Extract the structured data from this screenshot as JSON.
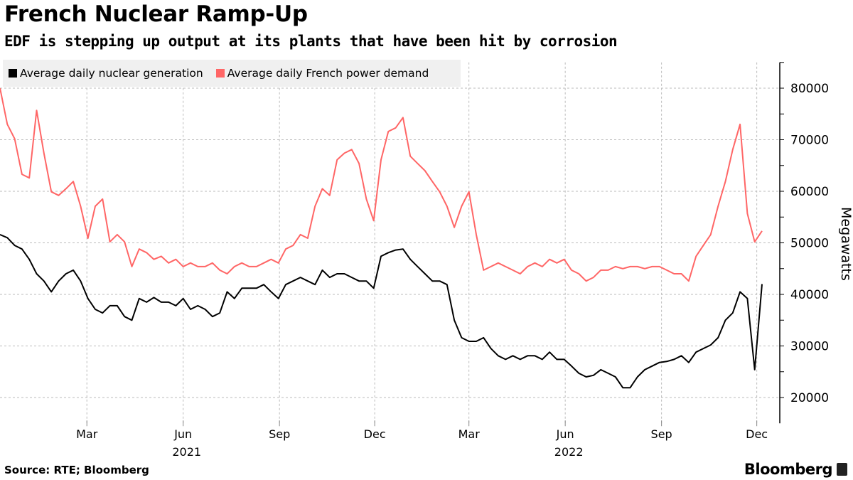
{
  "title": "French Nuclear Ramp-Up",
  "subtitle": "EDF is stepping up output at its plants that have been hit by corrosion",
  "source": "Source: RTE; Bloomberg",
  "logo": "Bloomberg",
  "chart_data": {
    "type": "line",
    "title": "French Nuclear Ramp-Up",
    "ylabel": "Megawatts",
    "ylim": [
      15000,
      85000
    ],
    "y_ticks": [
      20000,
      30000,
      40000,
      50000,
      60000,
      70000,
      80000
    ],
    "y_tick_labels": [
      "20000",
      "30000",
      "40000",
      "50000",
      "60000",
      "70000",
      "80000"
    ],
    "y_axis_side": "right",
    "x_range": [
      "2020-12-08",
      "2022-12-06"
    ],
    "x_ticks": [
      {
        "date": "2021-03-01",
        "label": "Mar"
      },
      {
        "date": "2021-06-01",
        "label": "Jun"
      },
      {
        "date": "2021-09-01",
        "label": "Sep"
      },
      {
        "date": "2021-12-01",
        "label": "Dec"
      },
      {
        "date": "2022-03-01",
        "label": "Mar"
      },
      {
        "date": "2022-06-01",
        "label": "Jun"
      },
      {
        "date": "2022-09-01",
        "label": "Sep"
      },
      {
        "date": "2022-12-01",
        "label": "Dec"
      }
    ],
    "x_year_labels": [
      {
        "date": "2021-06-01",
        "label": "2021"
      },
      {
        "date": "2022-06-01",
        "label": "2022"
      }
    ],
    "grid": true,
    "legend_position": "top-left",
    "x": [
      "2020-12-08",
      "2020-12-15",
      "2020-12-22",
      "2020-12-29",
      "2021-01-05",
      "2021-01-12",
      "2021-01-19",
      "2021-01-26",
      "2021-02-02",
      "2021-02-09",
      "2021-02-16",
      "2021-02-23",
      "2021-03-02",
      "2021-03-09",
      "2021-03-16",
      "2021-03-23",
      "2021-03-30",
      "2021-04-06",
      "2021-04-13",
      "2021-04-20",
      "2021-04-27",
      "2021-05-04",
      "2021-05-11",
      "2021-05-18",
      "2021-05-25",
      "2021-06-01",
      "2021-06-08",
      "2021-06-15",
      "2021-06-22",
      "2021-06-29",
      "2021-07-06",
      "2021-07-13",
      "2021-07-20",
      "2021-07-27",
      "2021-08-03",
      "2021-08-10",
      "2021-08-17",
      "2021-08-24",
      "2021-08-31",
      "2021-09-07",
      "2021-09-14",
      "2021-09-21",
      "2021-09-28",
      "2021-10-05",
      "2021-10-12",
      "2021-10-19",
      "2021-10-26",
      "2021-11-02",
      "2021-11-09",
      "2021-11-16",
      "2021-11-23",
      "2021-11-30",
      "2021-12-07",
      "2021-12-14",
      "2021-12-21",
      "2021-12-28",
      "2022-01-04",
      "2022-01-11",
      "2022-01-18",
      "2022-01-25",
      "2022-02-01",
      "2022-02-08",
      "2022-02-15",
      "2022-02-22",
      "2022-03-01",
      "2022-03-08",
      "2022-03-15",
      "2022-03-22",
      "2022-03-29",
      "2022-04-05",
      "2022-04-12",
      "2022-04-19",
      "2022-04-26",
      "2022-05-03",
      "2022-05-10",
      "2022-05-17",
      "2022-05-24",
      "2022-05-31",
      "2022-06-07",
      "2022-06-14",
      "2022-06-21",
      "2022-06-28",
      "2022-07-05",
      "2022-07-12",
      "2022-07-19",
      "2022-07-26",
      "2022-08-02",
      "2022-08-09",
      "2022-08-16",
      "2022-08-23",
      "2022-08-30",
      "2022-09-06",
      "2022-09-13",
      "2022-09-20",
      "2022-09-27",
      "2022-10-04",
      "2022-10-11",
      "2022-10-18",
      "2022-10-25",
      "2022-11-01",
      "2022-11-08",
      "2022-11-15",
      "2022-11-22",
      "2022-11-29",
      "2022-12-06"
    ],
    "series": [
      {
        "name": "Average daily nuclear generation",
        "color": "#000000",
        "values": [
          51600,
          51000,
          49500,
          48800,
          46800,
          44000,
          42600,
          40500,
          42600,
          44000,
          44700,
          42600,
          39200,
          37100,
          36400,
          37800,
          37800,
          35700,
          35000,
          39200,
          38500,
          39400,
          38500,
          38500,
          37800,
          39200,
          37100,
          37800,
          37100,
          35700,
          36400,
          40500,
          39200,
          41200,
          41200,
          41200,
          41900,
          40500,
          39200,
          41900,
          42600,
          43300,
          42600,
          41900,
          44700,
          43300,
          44000,
          44000,
          43300,
          42600,
          42600,
          41200,
          47400,
          48100,
          48600,
          48800,
          46800,
          45400,
          44000,
          42600,
          42600,
          41900,
          35000,
          31600,
          30900,
          30900,
          31600,
          29500,
          28100,
          27400,
          28100,
          27400,
          28100,
          28100,
          27400,
          28800,
          27400,
          27400,
          26100,
          24700,
          24000,
          24300,
          25400,
          24700,
          24000,
          21900,
          21900,
          24000,
          25400,
          26100,
          26800,
          27000,
          27400,
          28100,
          26800,
          28800,
          29500,
          30200,
          31600,
          35000,
          36400,
          40500,
          39200,
          25400,
          42000
        ]
      },
      {
        "name": "Average daily French power demand",
        "color": "#ff6666",
        "values": [
          80000,
          73000,
          70200,
          63300,
          62600,
          75700,
          67400,
          59900,
          59200,
          60500,
          61900,
          57100,
          50900,
          57100,
          58500,
          50200,
          51600,
          50200,
          45400,
          48800,
          48100,
          46800,
          47400,
          46100,
          46800,
          45400,
          46100,
          45400,
          45400,
          46100,
          44700,
          44000,
          45400,
          46100,
          45400,
          45400,
          46100,
          46800,
          46100,
          48800,
          49500,
          51600,
          50900,
          57100,
          60500,
          59200,
          66100,
          67400,
          68100,
          65400,
          58500,
          54300,
          66100,
          71600,
          72300,
          74300,
          66800,
          65400,
          64000,
          61900,
          59900,
          57100,
          53000,
          57100,
          59900,
          51600,
          44700,
          45400,
          46100,
          45400,
          44700,
          44000,
          45400,
          46100,
          45400,
          46800,
          46100,
          46800,
          44700,
          44000,
          42600,
          43300,
          44700,
          44700,
          45400,
          45000,
          45400,
          45400,
          45000,
          45400,
          45400,
          44700,
          44000,
          44000,
          42600,
          47400,
          49500,
          51600,
          57100,
          61900,
          68100,
          73000,
          55700,
          50200,
          52300
        ]
      }
    ]
  }
}
